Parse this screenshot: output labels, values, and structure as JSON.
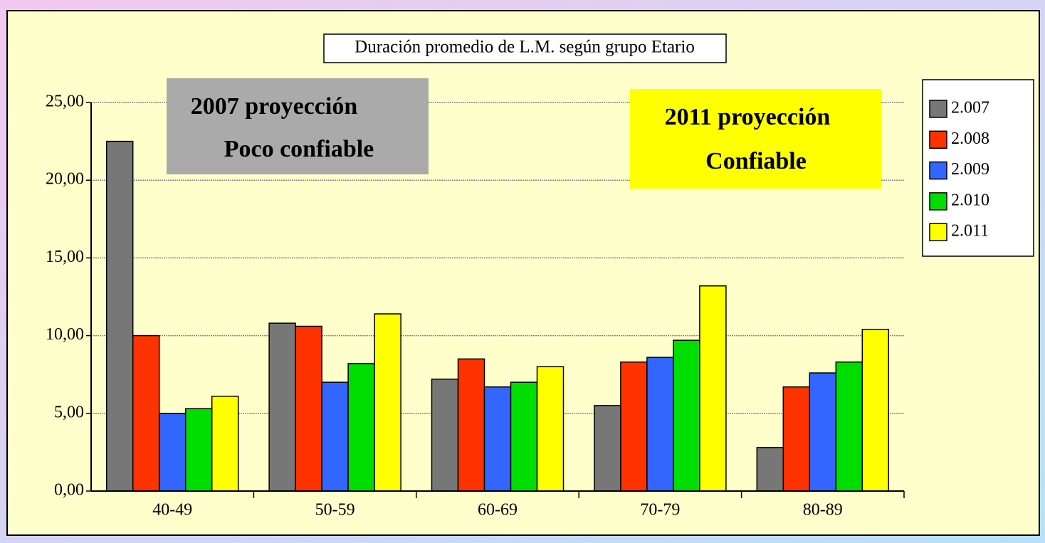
{
  "chart_data": {
    "type": "bar",
    "title": "Duración promedio de L.M. según grupo Etario",
    "categories": [
      "40-49",
      "50-59",
      "60-69",
      "70-79",
      "80-89"
    ],
    "series": [
      {
        "name": "2.007",
        "color": "#777777",
        "values": [
          22.5,
          10.8,
          7.2,
          5.5,
          2.8
        ]
      },
      {
        "name": "2.008",
        "color": "#FF3300",
        "values": [
          10.0,
          10.6,
          8.5,
          8.3,
          6.7
        ]
      },
      {
        "name": "2.009",
        "color": "#3366FF",
        "values": [
          5.0,
          7.0,
          6.7,
          8.6,
          7.6
        ]
      },
      {
        "name": "2.010",
        "color": "#00DD00",
        "values": [
          5.3,
          8.2,
          7.0,
          9.7,
          8.3
        ]
      },
      {
        "name": "2.011",
        "color": "#FFFF00",
        "values": [
          6.1,
          11.4,
          8.0,
          13.2,
          10.4
        ]
      }
    ],
    "ylim": [
      0,
      25
    ],
    "yticks": [
      {
        "value": 0,
        "label": "0,00"
      },
      {
        "value": 5,
        "label": "5,00"
      },
      {
        "value": 10,
        "label": "10,00"
      },
      {
        "value": 15,
        "label": "15,00"
      },
      {
        "value": 20,
        "label": "20,00"
      },
      {
        "value": 25,
        "label": "25,00"
      }
    ],
    "grid": true,
    "legend": "right",
    "annotations": [
      {
        "lines": [
          "2007 proyección",
          "Poco confiable"
        ],
        "color": "#AAAAAA"
      },
      {
        "lines": [
          "2011 proyección",
          "Confiable"
        ],
        "color": "#FFFF00"
      }
    ]
  }
}
